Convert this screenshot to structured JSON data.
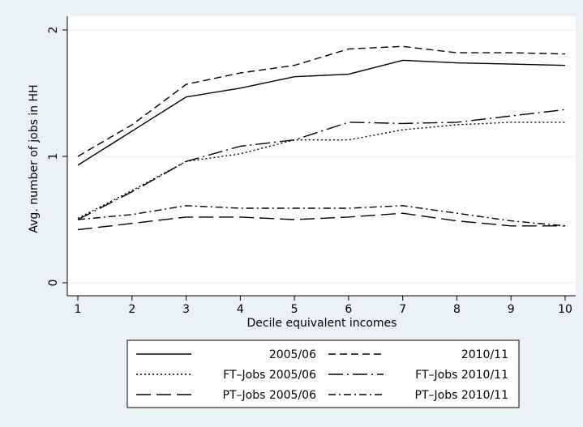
{
  "chart_data": {
    "type": "line",
    "title": "",
    "xlabel": "Decile equivalent incomes",
    "ylabel": "Avg. number of jobs in HH",
    "x": [
      1,
      2,
      3,
      4,
      5,
      6,
      7,
      8,
      9,
      10
    ],
    "xlim": [
      1,
      10
    ],
    "ylim": [
      0,
      2
    ],
    "x_ticks": [
      "1",
      "2",
      "3",
      "4",
      "5",
      "6",
      "7",
      "8",
      "9",
      "10"
    ],
    "y_ticks": [
      "0",
      "1",
      "2"
    ],
    "grid": "horizontal",
    "legend_position": "bottom",
    "colors": {
      "plot_background": "#ffffff",
      "outer_background": "#eaf2f3",
      "line": "#000000",
      "grid": "#e8eef0"
    },
    "series": [
      {
        "name": "2005/06",
        "dash": "solid",
        "values": [
          0.93,
          1.2,
          1.47,
          1.54,
          1.63,
          1.65,
          1.76,
          1.74,
          1.73,
          1.72
        ]
      },
      {
        "name": "2010/11",
        "dash": "dash",
        "values": [
          1.0,
          1.25,
          1.57,
          1.66,
          1.72,
          1.85,
          1.87,
          1.82,
          1.82,
          1.81
        ]
      },
      {
        "name": "FT–Jobs 2005/06",
        "dash": "dot",
        "values": [
          0.51,
          0.73,
          0.96,
          1.02,
          1.13,
          1.13,
          1.21,
          1.25,
          1.27,
          1.27
        ]
      },
      {
        "name": "FT–Jobs 2010/11",
        "dash": "longdashdot",
        "values": [
          0.5,
          0.72,
          0.96,
          1.08,
          1.13,
          1.27,
          1.26,
          1.27,
          1.32,
          1.37
        ]
      },
      {
        "name": "PT–Jobs 2005/06",
        "dash": "longdash",
        "values": [
          0.42,
          0.47,
          0.52,
          0.52,
          0.5,
          0.52,
          0.55,
          0.49,
          0.45,
          0.45
        ]
      },
      {
        "name": "PT–Jobs 2010/11",
        "dash": "dashdot",
        "values": [
          0.5,
          0.54,
          0.61,
          0.59,
          0.59,
          0.59,
          0.61,
          0.55,
          0.49,
          0.45
        ]
      }
    ]
  }
}
